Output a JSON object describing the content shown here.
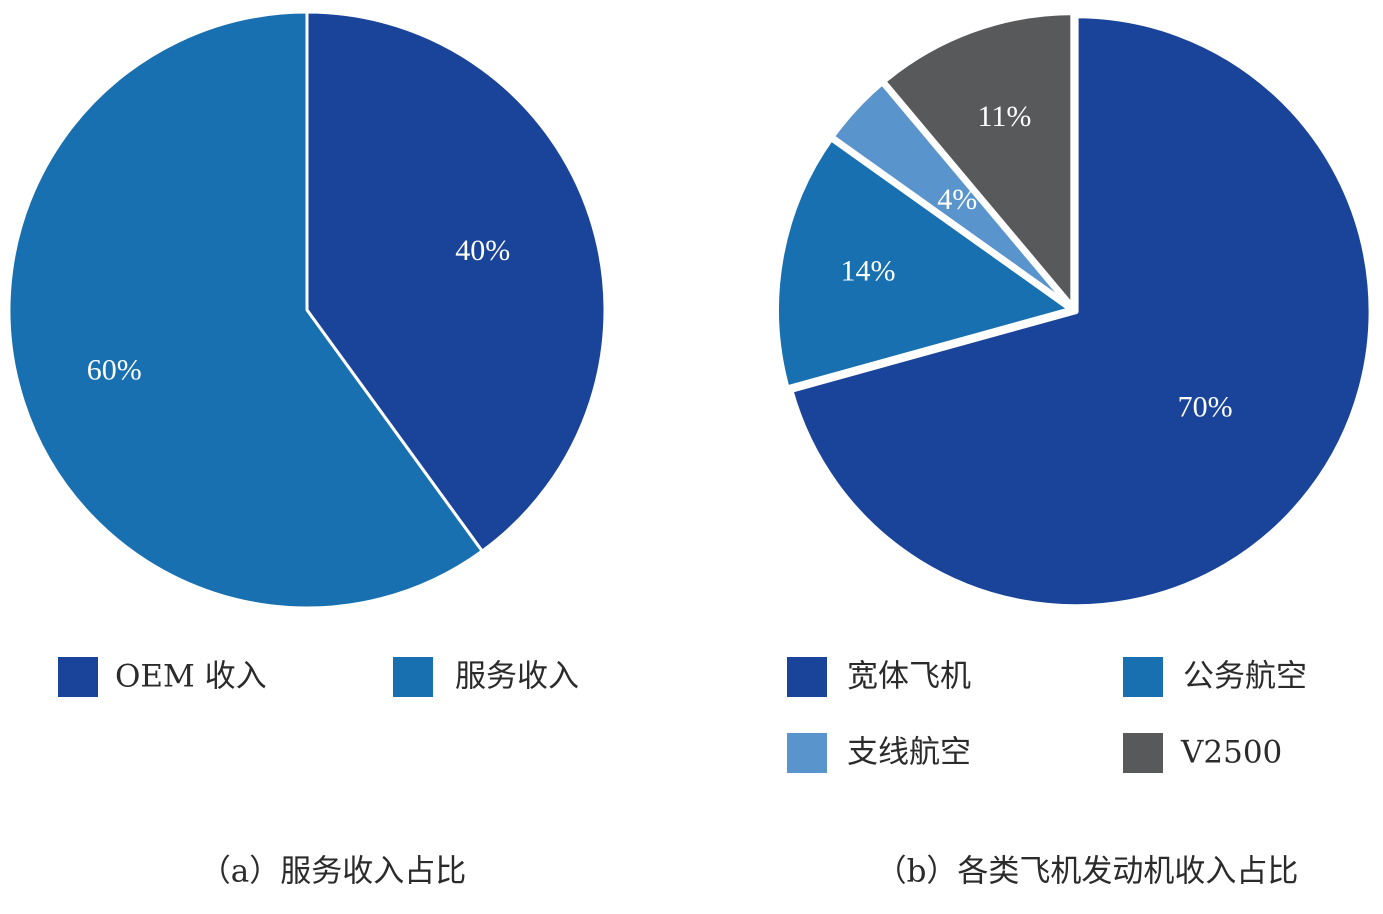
{
  "chart_data": [
    {
      "type": "pie",
      "caption": "（a）服务收入占比",
      "categories": [
        "OEM 收入",
        "服务收入"
      ],
      "values": [
        40,
        60
      ],
      "labels": [
        "40%",
        "60%"
      ],
      "colors": [
        "#1a4499",
        "#1870b0"
      ],
      "start": "top",
      "direction": "clockwise",
      "legend": "bottom",
      "legend_items": [
        "OEM 收入",
        "服务收入"
      ]
    },
    {
      "type": "pie",
      "caption": "（b）各类飞机发动机收入占比",
      "categories": [
        "宽体飞机",
        "公务航空",
        "支线航空",
        "V2500"
      ],
      "values": [
        70,
        14,
        4,
        11
      ],
      "labels": [
        "70%",
        "14%",
        "4%",
        "11%"
      ],
      "colors": [
        "#1a4499",
        "#1870b0",
        "#5a94cc",
        "#58595b"
      ],
      "start": "top",
      "direction": "clockwise",
      "legend": "bottom",
      "legend_items": [
        "宽体飞机",
        "公务航空",
        "支线航空",
        "V2500"
      ]
    }
  ]
}
